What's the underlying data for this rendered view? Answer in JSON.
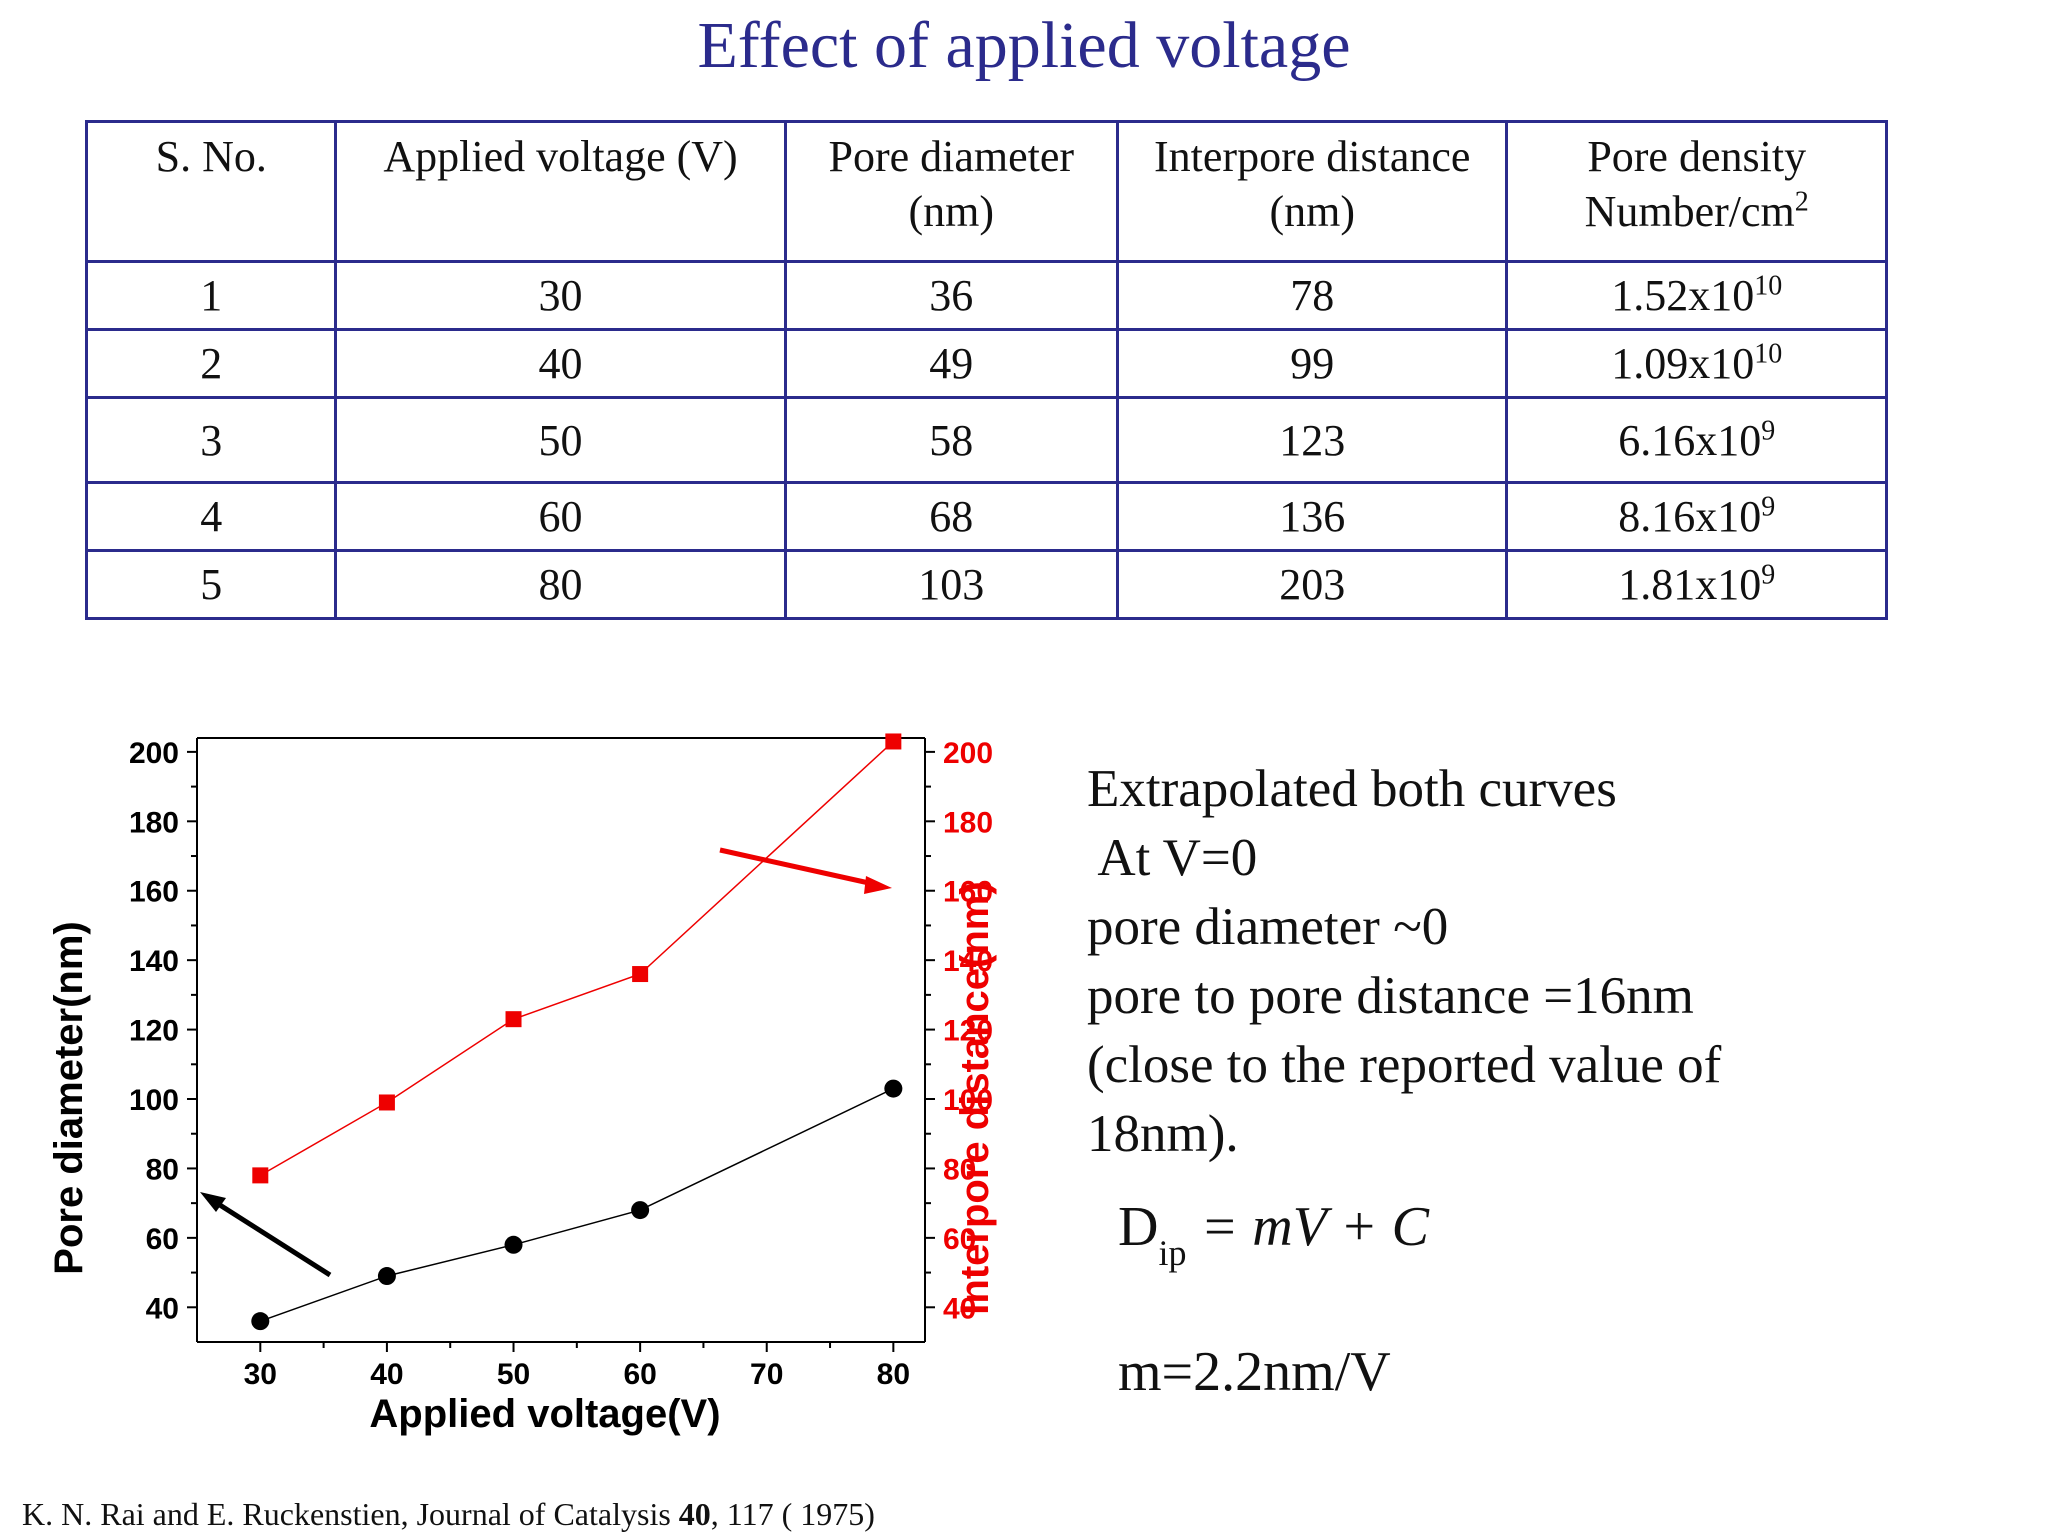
{
  "title": "Effect of applied voltage",
  "table": {
    "headers": [
      {
        "line1": "S. No.",
        "line2": ""
      },
      {
        "line1": "Applied voltage (V)",
        "line2": ""
      },
      {
        "line1": "Pore diameter",
        "line2": "(nm)"
      },
      {
        "line1": "Interpore distance",
        "line2": "(nm)"
      },
      {
        "line1": "Pore density",
        "line2": "Number/cm",
        "line2_sup": "2"
      }
    ],
    "rows": [
      {
        "sno": "1",
        "voltage": "30",
        "diameter": "36",
        "distance": "78",
        "density_mant": "1.52x10",
        "density_exp": "10"
      },
      {
        "sno": "2",
        "voltage": "40",
        "diameter": "49",
        "distance": "99",
        "density_mant": "1.09x10",
        "density_exp": "10"
      },
      {
        "sno": "3",
        "voltage": "50",
        "diameter": "58",
        "distance": "123",
        "density_mant": "6.16x10",
        "density_exp": "9"
      },
      {
        "sno": "4",
        "voltage": "60",
        "diameter": "68",
        "distance": "136",
        "density_mant": "8.16x10",
        "density_exp": "9"
      },
      {
        "sno": "5",
        "voltage": "80",
        "diameter": "103",
        "distance": "203",
        "density_mant": "1.81x10",
        "density_exp": "9"
      }
    ]
  },
  "chart_data": {
    "type": "line",
    "title": "",
    "xlabel": "Applied voltage(V)",
    "ylabel_left": "Pore diameter(nm)",
    "ylabel_right": "Interpore distance(nm)",
    "xlim": [
      25,
      82.5
    ],
    "ylim_left": [
      30,
      204
    ],
    "ylim_right": [
      30,
      204
    ],
    "x_ticks": [
      30,
      40,
      50,
      60,
      70,
      80
    ],
    "y_ticks_left": [
      40,
      60,
      80,
      100,
      120,
      140,
      160,
      180,
      200
    ],
    "y_ticks_right": [
      40,
      60,
      80,
      100,
      120,
      140,
      160,
      180,
      200
    ],
    "grid": false,
    "series": [
      {
        "axis": "left",
        "color": "#000000",
        "marker": "circle",
        "x": [
          30,
          40,
          50,
          60,
          80
        ],
        "values": [
          36,
          49,
          58,
          68,
          103
        ]
      },
      {
        "axis": "right",
        "color": "#ee0000",
        "marker": "square",
        "x": [
          30,
          40,
          50,
          60,
          80
        ],
        "values": [
          78,
          99,
          123,
          136,
          203
        ]
      }
    ]
  },
  "notes": [
    "Extrapolated both curves",
    " At V=0",
    "pore diameter ~0",
    "pore to pore distance =16nm",
    "(close to the reported value of",
    "18nm)."
  ],
  "equation": {
    "lhs": "D",
    "lhs_sub": "ip",
    "rhs": "= mV + C"
  },
  "slope": "m=2.2nm/V",
  "reference": {
    "pre": "K. N. Rai and E. Ruckenstien, Journal of  Catalysis ",
    "bold": "40",
    "post": ", 117 ( 1975)"
  }
}
